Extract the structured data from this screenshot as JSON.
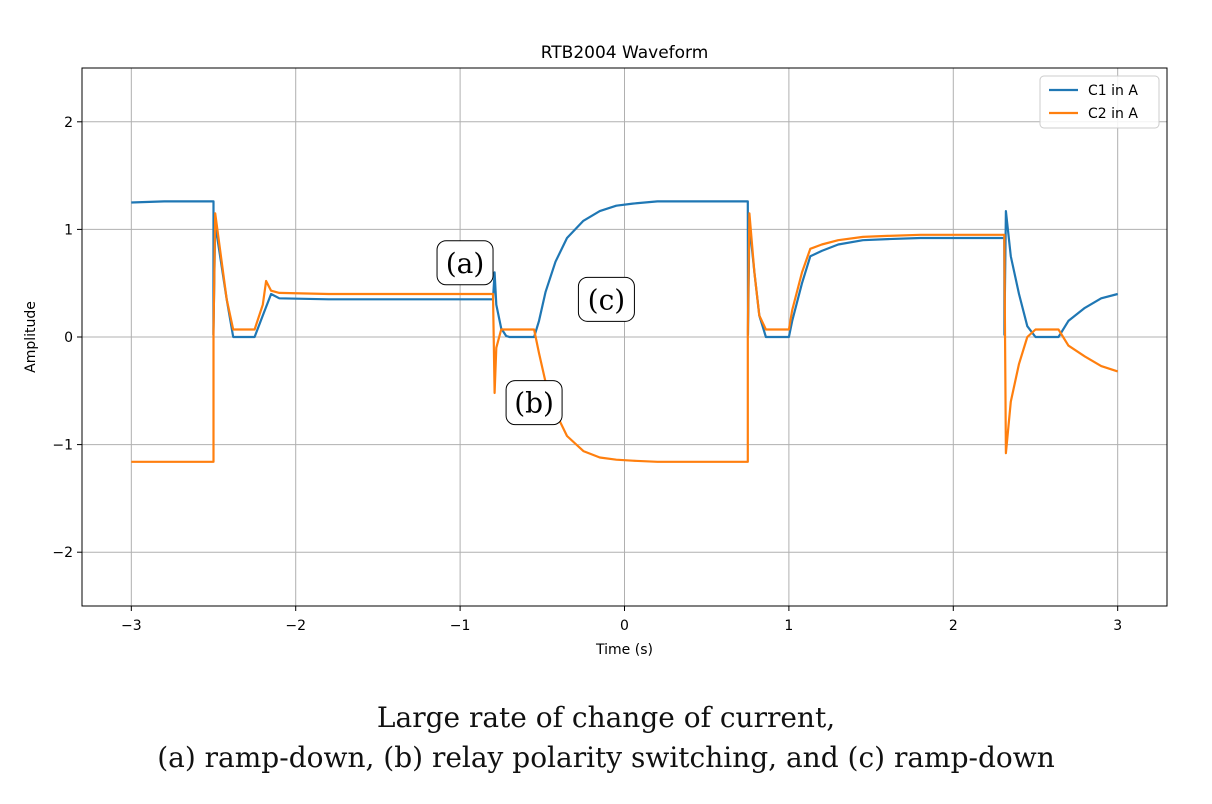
{
  "chart_data": {
    "type": "line",
    "title": "RTB2004 Waveform",
    "xlabel": "Time (s)",
    "ylabel": "Amplitude",
    "xlim": [
      -3.3,
      3.3
    ],
    "ylim": [
      -2.5,
      2.5
    ],
    "xticks": [
      -3,
      -2,
      -1,
      0,
      1,
      2,
      3
    ],
    "yticks": [
      -2,
      -1,
      0,
      1,
      2
    ],
    "xtick_labels": [
      "−3",
      "−2",
      "−1",
      "0",
      "1",
      "2",
      "3"
    ],
    "ytick_labels": [
      "−2",
      "−1",
      "0",
      "1",
      "2"
    ],
    "grid": true,
    "legend_position": "top-right",
    "series": [
      {
        "name": "C1 in A",
        "color": "#1f77b4",
        "x": [
          -3.0,
          -2.8,
          -2.6,
          -2.5,
          -2.501,
          -2.49,
          -2.42,
          -2.38,
          -2.3,
          -2.25,
          -2.2,
          -2.15,
          -2.1,
          -1.8,
          -1.2,
          -0.8,
          -0.79,
          -0.78,
          -0.75,
          -0.72,
          -0.7,
          -0.6,
          -0.55,
          -0.52,
          -0.48,
          -0.42,
          -0.35,
          -0.25,
          -0.15,
          -0.05,
          0.05,
          0.2,
          0.4,
          0.6,
          0.75,
          0.751,
          0.76,
          0.79,
          0.82,
          0.86,
          0.9,
          1.0,
          1.02,
          1.08,
          1.13,
          1.2,
          1.3,
          1.45,
          1.6,
          1.8,
          2.0,
          2.2,
          2.31,
          2.311,
          2.32,
          2.35,
          2.4,
          2.45,
          2.5,
          2.6,
          2.64,
          2.7,
          2.8,
          2.9,
          3.0
        ],
        "y": [
          1.25,
          1.26,
          1.26,
          1.26,
          0.02,
          1.05,
          0.35,
          0.0,
          0.0,
          0.0,
          0.2,
          0.4,
          0.36,
          0.35,
          0.35,
          0.35,
          0.6,
          0.3,
          0.08,
          0.01,
          0.0,
          0.0,
          0.0,
          0.15,
          0.42,
          0.7,
          0.92,
          1.08,
          1.17,
          1.22,
          1.24,
          1.26,
          1.26,
          1.26,
          1.26,
          0.02,
          1.05,
          0.6,
          0.2,
          0.0,
          0.0,
          0.0,
          0.15,
          0.5,
          0.75,
          0.8,
          0.86,
          0.9,
          0.91,
          0.92,
          0.92,
          0.92,
          0.92,
          0.02,
          1.17,
          0.75,
          0.4,
          0.1,
          0.0,
          0.0,
          0.0,
          0.15,
          0.27,
          0.36,
          0.4
        ]
      },
      {
        "name": "C2 in A",
        "color": "#ff7f0e",
        "x": [
          -3.0,
          -2.8,
          -2.6,
          -2.5,
          -2.5,
          -2.49,
          -2.42,
          -2.38,
          -2.3,
          -2.25,
          -2.2,
          -2.18,
          -2.15,
          -2.1,
          -1.8,
          -1.2,
          -0.8,
          -0.79,
          -0.78,
          -0.75,
          -0.72,
          -0.6,
          -0.55,
          -0.52,
          -0.48,
          -0.42,
          -0.35,
          -0.25,
          -0.15,
          -0.05,
          0.05,
          0.2,
          0.4,
          0.6,
          0.75,
          0.75,
          0.76,
          0.79,
          0.82,
          0.86,
          0.9,
          1.0,
          1.02,
          1.08,
          1.13,
          1.2,
          1.3,
          1.45,
          1.6,
          1.8,
          2.0,
          2.2,
          2.31,
          2.32,
          2.35,
          2.4,
          2.45,
          2.5,
          2.6,
          2.64,
          2.7,
          2.8,
          2.9,
          3.0
        ],
        "y": [
          -1.16,
          -1.16,
          -1.16,
          -1.16,
          0.05,
          1.15,
          0.35,
          0.07,
          0.07,
          0.07,
          0.3,
          0.52,
          0.43,
          0.41,
          0.4,
          0.4,
          0.4,
          -0.52,
          -0.1,
          0.07,
          0.07,
          0.07,
          0.07,
          -0.15,
          -0.42,
          -0.7,
          -0.92,
          -1.06,
          -1.12,
          -1.14,
          -1.15,
          -1.16,
          -1.16,
          -1.16,
          -1.16,
          0.05,
          1.15,
          0.6,
          0.2,
          0.07,
          0.07,
          0.07,
          0.25,
          0.6,
          0.82,
          0.86,
          0.9,
          0.93,
          0.94,
          0.95,
          0.95,
          0.95,
          0.95,
          -1.08,
          -0.6,
          -0.25,
          0.0,
          0.07,
          0.07,
          0.07,
          -0.08,
          -0.18,
          -0.27,
          -0.32
        ]
      }
    ],
    "annotations": [
      {
        "text": "(a)",
        "x": -0.97,
        "y": 0.69
      },
      {
        "text": "(b)",
        "x": -0.55,
        "y": -0.61
      },
      {
        "text": "(c)",
        "x": -0.11,
        "y": 0.35
      }
    ]
  },
  "caption": {
    "line1": "Large rate of change of current,",
    "line2": "(a) ramp-down, (b) relay polarity switching, and (c) ramp-down"
  }
}
